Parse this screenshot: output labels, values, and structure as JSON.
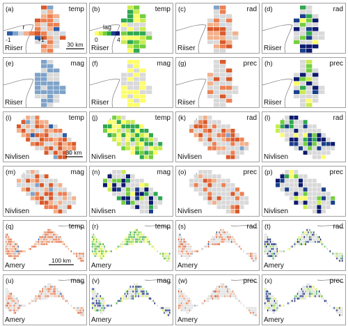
{
  "panels": [
    {
      "letter": "(a)",
      "var": "temp",
      "site": "Riiser",
      "mode": "r"
    },
    {
      "letter": "(b)",
      "var": "temp",
      "site": "Riiser",
      "mode": "lag"
    },
    {
      "letter": "(c)",
      "var": "rad",
      "site": "Riiser",
      "mode": "r"
    },
    {
      "letter": "(d)",
      "var": "rad",
      "site": "Riiser",
      "mode": "lag"
    },
    {
      "letter": "(e)",
      "var": "mag",
      "site": "Riiser",
      "mode": "r"
    },
    {
      "letter": "(f)",
      "var": "mag",
      "site": "Riiser",
      "mode": "lag"
    },
    {
      "letter": "(g)",
      "var": "prec",
      "site": "Riiser",
      "mode": "r"
    },
    {
      "letter": "(h)",
      "var": "prec",
      "site": "Riiser",
      "mode": "lag"
    },
    {
      "letter": "(i)",
      "var": "temp",
      "site": "Nivlisen",
      "mode": "r"
    },
    {
      "letter": "(j)",
      "var": "temp",
      "site": "Nivlisen",
      "mode": "lag"
    },
    {
      "letter": "(k)",
      "var": "rad",
      "site": "Nivlisen",
      "mode": "r"
    },
    {
      "letter": "(l)",
      "var": "rad",
      "site": "Nivlisen",
      "mode": "lag"
    },
    {
      "letter": "(m)",
      "var": "mag",
      "site": "Nivlisen",
      "mode": "r"
    },
    {
      "letter": "(n)",
      "var": "mag",
      "site": "Nivlisen",
      "mode": "lag"
    },
    {
      "letter": "(o)",
      "var": "prec",
      "site": "Nivlisen",
      "mode": "r"
    },
    {
      "letter": "(p)",
      "var": "prec",
      "site": "Nivlisen",
      "mode": "lag"
    },
    {
      "letter": "(q)",
      "var": "temp",
      "site": "Amery",
      "mode": "r"
    },
    {
      "letter": "(r)",
      "var": "temp",
      "site": "Amery",
      "mode": "lag"
    },
    {
      "letter": "(s)",
      "var": "rad",
      "site": "Amery",
      "mode": "r"
    },
    {
      "letter": "(t)",
      "var": "rad",
      "site": "Amery",
      "mode": "lag"
    },
    {
      "letter": "(u)",
      "var": "mag",
      "site": "Amery",
      "mode": "r"
    },
    {
      "letter": "(v)",
      "var": "mag",
      "site": "Amery",
      "mode": "lag"
    },
    {
      "letter": "(w)",
      "var": "prec",
      "site": "Amery",
      "mode": "r"
    },
    {
      "letter": "(x)",
      "var": "prec",
      "site": "Amery",
      "mode": "lag"
    }
  ],
  "legend_r": {
    "title": "r",
    "min": "-1",
    "max": "+1"
  },
  "legend_lag": {
    "title": "lag",
    "min": "0",
    "max": "4"
  },
  "scalebars": {
    "riiser": "30 km",
    "nivlisen": "30 km",
    "amery": "100 km"
  },
  "colors": {
    "no_data": "#d9d9d9",
    "r_scale": [
      "#2c5fa8",
      "#7fa3c9",
      "#cfd9e3",
      "#f3b08a",
      "#ec8052",
      "#d95a2b"
    ],
    "lag_scale": [
      "#fdfd6b",
      "#c8ec4f",
      "#72cf3f",
      "#2fa84f",
      "#1b3f8a",
      "#0d1a6e"
    ]
  }
}
